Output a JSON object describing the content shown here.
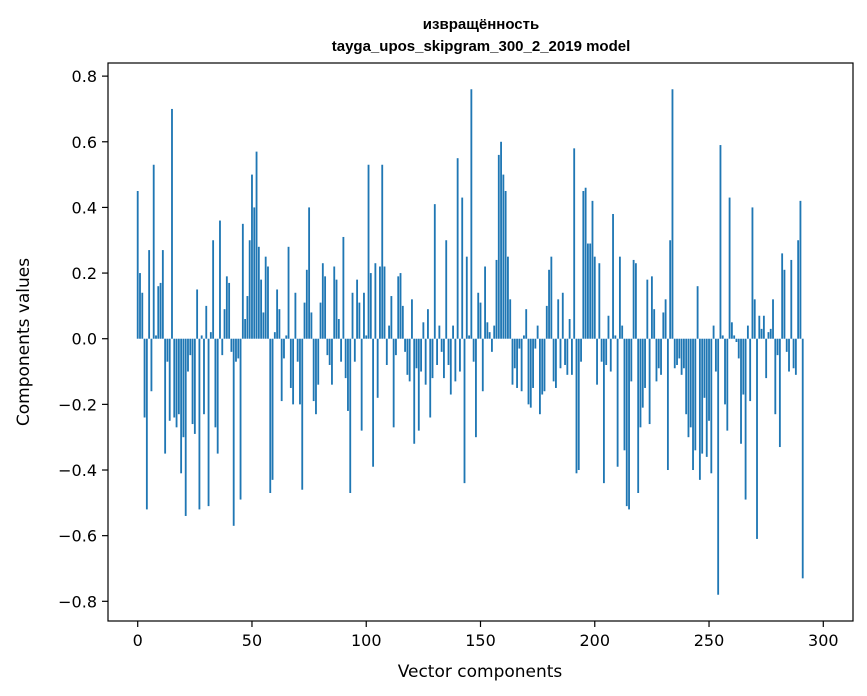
{
  "chart_data": {
    "type": "bar",
    "title_line1": "извращённость",
    "title_line2": "tayga_upos_skipgram_300_2_2019 model",
    "xlabel": "Vector components",
    "ylabel": "Components values",
    "xlim": [
      -13,
      313
    ],
    "ylim": [
      -0.86,
      0.84
    ],
    "xticks": [
      0,
      50,
      100,
      150,
      200,
      250,
      300
    ],
    "yticks": [
      -0.8,
      -0.6,
      -0.4,
      -0.2,
      0.0,
      0.2,
      0.4,
      0.6,
      0.8
    ],
    "ytick_labels": [
      "−0.8",
      "−0.6",
      "−0.4",
      "−0.2",
      "0.0",
      "0.2",
      "0.4",
      "0.6",
      "0.8"
    ],
    "bar_color": "#1f77b4",
    "values": [
      0.45,
      0.2,
      0.14,
      -0.24,
      -0.52,
      0.27,
      -0.16,
      0.53,
      0.01,
      0.16,
      0.17,
      0.27,
      -0.35,
      -0.07,
      -0.25,
      0.7,
      -0.24,
      -0.27,
      -0.23,
      -0.41,
      -0.3,
      -0.54,
      -0.1,
      -0.05,
      -0.26,
      -0.29,
      0.15,
      -0.52,
      0.01,
      -0.23,
      0.1,
      -0.51,
      0.02,
      0.3,
      -0.27,
      -0.35,
      0.36,
      -0.05,
      0.09,
      0.19,
      0.17,
      -0.04,
      -0.57,
      -0.07,
      -0.06,
      -0.49,
      0.35,
      0.06,
      0.13,
      0.3,
      0.5,
      0.4,
      0.57,
      0.28,
      0.18,
      0.08,
      0.25,
      0.22,
      -0.47,
      -0.43,
      0.02,
      0.15,
      0.09,
      -0.19,
      -0.06,
      0.01,
      0.28,
      -0.15,
      -0.2,
      0.14,
      -0.07,
      -0.2,
      -0.46,
      0.11,
      0.21,
      0.4,
      0.08,
      -0.19,
      -0.23,
      -0.14,
      0.11,
      0.23,
      0.19,
      -0.05,
      -0.08,
      -0.14,
      0.22,
      0.18,
      0.06,
      -0.07,
      0.31,
      -0.12,
      -0.22,
      -0.47,
      0.14,
      -0.07,
      0.18,
      0.11,
      -0.28,
      0.14,
      0.01,
      0.53,
      0.2,
      -0.39,
      0.23,
      -0.18,
      0.22,
      0.53,
      0.22,
      -0.08,
      0.04,
      0.13,
      -0.27,
      -0.05,
      0.19,
      0.2,
      0.1,
      -0.04,
      -0.11,
      -0.13,
      0.12,
      -0.32,
      -0.09,
      -0.28,
      -0.1,
      0.05,
      -0.14,
      0.09,
      -0.24,
      -0.12,
      0.41,
      -0.08,
      0.04,
      -0.04,
      -0.12,
      0.3,
      -0.08,
      -0.17,
      0.04,
      -0.13,
      0.55,
      -0.1,
      0.43,
      -0.44,
      0.25,
      0.01,
      0.76,
      -0.07,
      -0.3,
      0.14,
      0.11,
      -0.16,
      0.22,
      0.05,
      0.02,
      -0.04,
      0.04,
      0.24,
      0.56,
      0.6,
      0.5,
      0.45,
      0.25,
      0.12,
      -0.14,
      -0.09,
      -0.15,
      -0.03,
      -0.16,
      0.01,
      0.09,
      -0.2,
      -0.21,
      -0.15,
      -0.03,
      0.04,
      -0.23,
      -0.17,
      -0.16,
      0.1,
      0.21,
      0.25,
      -0.13,
      -0.15,
      0.12,
      -0.09,
      0.14,
      -0.08,
      -0.11,
      0.06,
      -0.11,
      0.58,
      -0.41,
      -0.4,
      -0.07,
      0.45,
      0.46,
      0.29,
      0.29,
      0.42,
      0.25,
      -0.14,
      0.23,
      -0.07,
      -0.44,
      -0.08,
      0.07,
      -0.1,
      0.38,
      0.01,
      -0.39,
      0.25,
      0.04,
      -0.34,
      -0.51,
      -0.52,
      -0.13,
      0.24,
      0.23,
      -0.47,
      -0.27,
      -0.21,
      -0.15,
      0.18,
      -0.26,
      0.19,
      0.09,
      -0.13,
      -0.09,
      -0.11,
      0.08,
      0.12,
      -0.4,
      0.3,
      0.76,
      -0.09,
      -0.08,
      -0.06,
      -0.11,
      -0.09,
      -0.23,
      -0.3,
      -0.27,
      -0.4,
      -0.34,
      0.16,
      -0.43,
      -0.35,
      -0.18,
      -0.36,
      -0.25,
      -0.41,
      0.04,
      -0.1,
      -0.78,
      0.59,
      0.01,
      -0.2,
      -0.28,
      0.43,
      0.05,
      0.01,
      -0.01,
      -0.06,
      -0.32,
      -0.17,
      -0.49,
      0.04,
      -0.19,
      0.4,
      0.12,
      -0.61,
      0.07,
      0.03,
      0.07,
      -0.12,
      0.02,
      0.03,
      0.12,
      -0.23,
      -0.05,
      -0.33,
      0.26,
      0.21,
      -0.04,
      -0.1,
      0.24,
      -0.09,
      -0.11,
      0.3,
      0.42,
      -0.73
    ]
  }
}
